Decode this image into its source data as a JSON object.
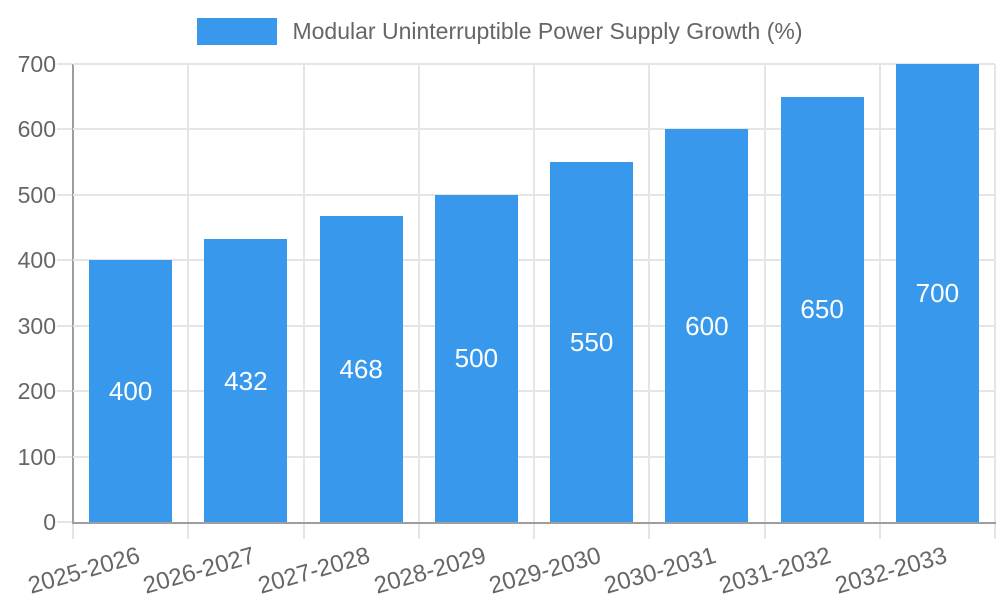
{
  "chart_data": {
    "type": "bar",
    "title": "Modular Uninterruptible Power Supply Growth (%)",
    "categories": [
      "2025-2026",
      "2026-2027",
      "2027-2028",
      "2028-2029",
      "2029-2030",
      "2030-2031",
      "2031-2032",
      "2032-2033"
    ],
    "values": [
      400,
      432,
      468,
      500,
      550,
      600,
      650,
      700
    ],
    "xlabel": "",
    "ylabel": "",
    "ylim": [
      0,
      700
    ],
    "yticks": [
      0,
      100,
      200,
      300,
      400,
      500,
      600,
      700
    ],
    "grid": true,
    "legend_position": "top",
    "value_labels": "centered-in-bar",
    "x_tick_rotation_deg": -16,
    "colors": {
      "bar": "#3899EC",
      "value_text": "#ffffff",
      "axis_labels": "#666666",
      "grid": "#e5e5e5",
      "axis_lines": "#9e9e9e",
      "background": "#ffffff"
    }
  }
}
